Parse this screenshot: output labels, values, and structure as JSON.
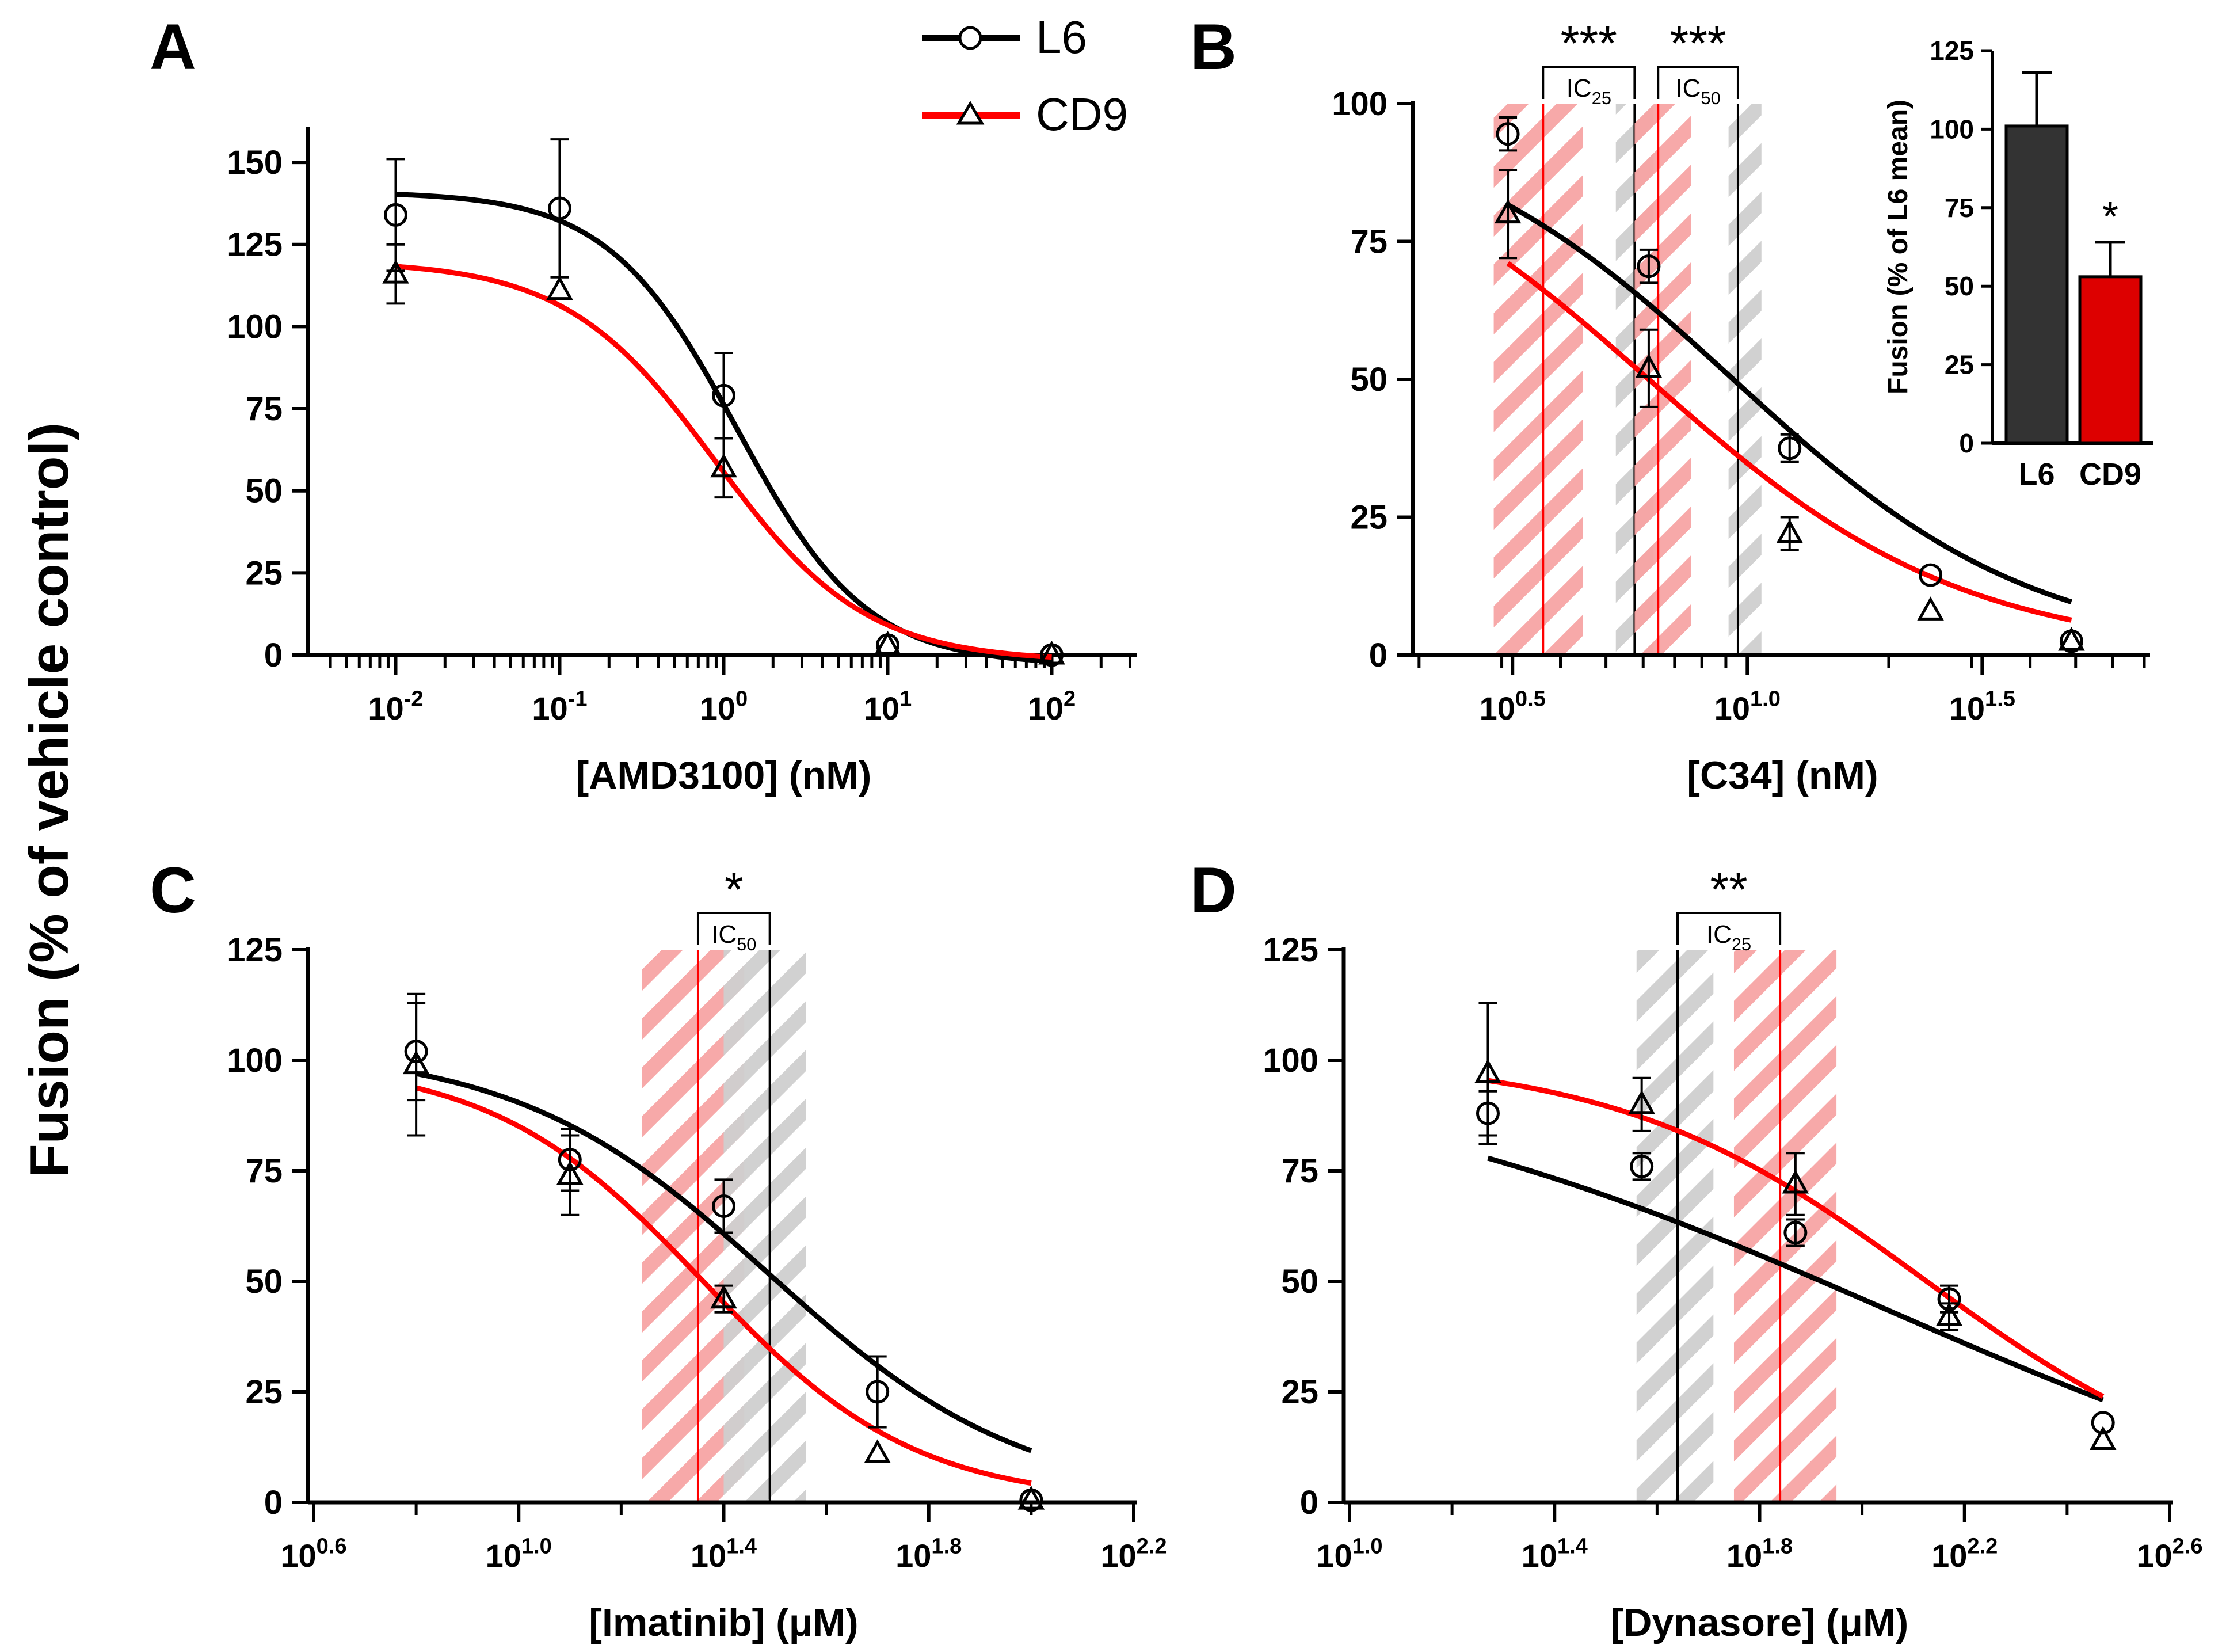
{
  "figure": {
    "shared_ylabel": "Fusion (% of vehicle control)",
    "legend": [
      {
        "name": "L6",
        "color": "#000000",
        "marker": "circle"
      },
      {
        "name": "CD9",
        "color": "#ff0000",
        "marker": "triangle"
      }
    ],
    "colors": {
      "l6": "#000000",
      "cd9": "#ff0000",
      "hatch_red": "#f7a4a4",
      "hatch_gray": "#cfcfcf",
      "bar_l6": "#333333",
      "bar_cd9": "#dd0000"
    }
  },
  "chart_data": [
    {
      "panel": "A",
      "type": "line",
      "xscale": "log10",
      "xlabel": "[AMD3100] (nM)",
      "ylabel": "Fusion (% of vehicle control)",
      "xlim_log": [
        -2.5,
        2.5
      ],
      "ylim": [
        0,
        160
      ],
      "yticks": [
        0,
        25,
        50,
        75,
        100,
        125,
        150
      ],
      "xticks": [
        {
          "log": -2,
          "base": "10",
          "exp": "-2"
        },
        {
          "log": -1,
          "base": "10",
          "exp": "-1"
        },
        {
          "log": 0,
          "base": "10",
          "exp": "0"
        },
        {
          "log": 1,
          "base": "10",
          "exp": "1"
        },
        {
          "log": 2,
          "base": "10",
          "exp": "2"
        }
      ],
      "minor_log_ticks": true,
      "series": [
        {
          "name": "L6",
          "x_log": [
            -2,
            -1,
            0,
            1,
            2
          ],
          "y": [
            134,
            136,
            79,
            3,
            0
          ],
          "err": [
            17,
            21,
            13,
            0,
            0
          ],
          "fit": {
            "top": 141,
            "bottom": -3,
            "logIC50": 0.08,
            "hill": 1.1
          }
        },
        {
          "name": "CD9",
          "x_log": [
            -2,
            -1,
            0,
            1,
            2
          ],
          "y": [
            116,
            111,
            57,
            3,
            0
          ],
          "err": [
            9,
            0,
            9,
            0,
            0
          ],
          "fit": {
            "top": 120,
            "bottom": -2,
            "logIC50": -0.05,
            "hill": 0.95
          }
        }
      ],
      "annotations": []
    },
    {
      "panel": "B",
      "type": "line",
      "xscale": "log10",
      "xlabel": "[C34] (nM)",
      "ylabel": "Fusion (% of vehicle control)",
      "xlim_log": [
        0.3,
        1.85
      ],
      "ylim": [
        0,
        100
      ],
      "yticks": [
        0,
        25,
        50,
        75,
        100
      ],
      "xticks": [
        {
          "log": 0.5,
          "base": "10",
          "exp": "0.5"
        },
        {
          "log": 1.0,
          "base": "10",
          "exp": "1.0"
        },
        {
          "log": 1.5,
          "base": "10",
          "exp": "1.5"
        }
      ],
      "minor_log_ticks": true,
      "series": [
        {
          "name": "L6",
          "x_log": [
            0.49,
            0.79,
            1.09,
            1.39,
            1.69
          ],
          "y": [
            94.5,
            70.5,
            37.5,
            14.5,
            2.5
          ],
          "err": [
            3,
            3,
            2.5,
            0,
            0
          ],
          "fit": {
            "top": 100,
            "bottom": 0,
            "logIC50": 0.97,
            "hill": 1.35
          }
        },
        {
          "name": "CD9",
          "x_log": [
            0.49,
            0.79,
            1.09,
            1.39,
            1.69
          ],
          "y": [
            80,
            52,
            22,
            8,
            2.5
          ],
          "err": [
            8,
            7,
            3,
            0,
            0
          ],
          "fit": {
            "top": 100,
            "bottom": 0,
            "logIC50": 0.79,
            "hill": 1.3
          }
        }
      ],
      "bands": [
        {
          "center_log": 0.565,
          "lo_log": 0.46,
          "hi_log": 0.65,
          "color": "red"
        },
        {
          "center_log": 0.76,
          "lo_log": 0.72,
          "hi_log": 0.8,
          "color": "gray"
        },
        {
          "center_log": 0.81,
          "lo_log": 0.76,
          "hi_log": 0.88,
          "color": "red"
        },
        {
          "center_log": 0.98,
          "lo_log": 0.96,
          "hi_log": 1.03,
          "color": "gray"
        }
      ],
      "annotations": [
        {
          "label_base": "IC",
          "label_sub": "25",
          "from_log": 0.565,
          "to_log": 0.76,
          "stars": "***"
        },
        {
          "label_base": "IC",
          "label_sub": "50",
          "from_log": 0.81,
          "to_log": 0.98,
          "stars": "***"
        }
      ],
      "inset": {
        "type": "bar",
        "categories": [
          "L6",
          "CD9"
        ],
        "values": [
          101,
          53
        ],
        "err": [
          17,
          11
        ],
        "ylabel": "Fusion (% of L6 mean)",
        "ylim": [
          0,
          125
        ],
        "yticks": [
          0,
          25,
          50,
          75,
          100,
          125
        ],
        "significance": [
          {
            "category": "CD9",
            "stars": "*"
          }
        ]
      }
    },
    {
      "panel": "C",
      "type": "line",
      "xscale": "log10",
      "xlabel": "[Imatinib] (μM)",
      "ylabel": "Fusion (% of vehicle control)",
      "xlim_log": [
        0.6,
        2.2
      ],
      "ylim": [
        0,
        125
      ],
      "yticks": [
        0,
        25,
        50,
        75,
        100,
        125
      ],
      "xticks": [
        {
          "log": 0.6,
          "base": "10",
          "exp": "0.6"
        },
        {
          "log": 1.0,
          "base": "10",
          "exp": "1.0"
        },
        {
          "log": 1.4,
          "base": "10",
          "exp": "1.4"
        },
        {
          "log": 1.8,
          "base": "10",
          "exp": "1.8"
        },
        {
          "log": 2.2,
          "base": "10",
          "exp": "2.2"
        }
      ],
      "minor_log_ticks": false,
      "series": [
        {
          "name": "L6",
          "x_log": [
            0.8,
            1.1,
            1.4,
            1.7,
            2.0
          ],
          "y": [
            102,
            77.5,
            67,
            25,
            0.5
          ],
          "err": [
            11,
            7,
            6,
            8,
            0
          ],
          "fit": {
            "top": 103,
            "bottom": 0,
            "logIC50": 1.49,
            "hill": 1.75
          }
        },
        {
          "name": "CD9",
          "x_log": [
            0.8,
            1.1,
            1.4,
            1.7,
            2.0
          ],
          "y": [
            99,
            74,
            46,
            11,
            0.5
          ],
          "err": [
            16,
            9,
            3,
            0,
            0
          ],
          "fit": {
            "top": 100,
            "bottom": 0,
            "logIC50": 1.36,
            "hill": 2.1
          }
        }
      ],
      "bands": [
        {
          "center_log": 1.35,
          "lo_log": 1.24,
          "hi_log": 1.44,
          "color": "red"
        },
        {
          "center_log": 1.49,
          "lo_log": 1.4,
          "hi_log": 1.56,
          "color": "gray"
        }
      ],
      "annotations": [
        {
          "label_base": "IC",
          "label_sub": "50",
          "from_log": 1.35,
          "to_log": 1.49,
          "stars": "*"
        }
      ]
    },
    {
      "panel": "D",
      "type": "line",
      "xscale": "log10",
      "xlabel": "[Dynasore] (μM)",
      "ylabel": "Fusion (% of vehicle control)",
      "xlim_log": [
        1.0,
        2.6
      ],
      "ylim": [
        0,
        125
      ],
      "yticks": [
        0,
        25,
        50,
        75,
        100,
        125
      ],
      "xticks": [
        {
          "log": 1.0,
          "base": "10",
          "exp": "1.0"
        },
        {
          "log": 1.4,
          "base": "10",
          "exp": "1.4"
        },
        {
          "log": 1.8,
          "base": "10",
          "exp": "1.8"
        },
        {
          "log": 2.2,
          "base": "10",
          "exp": "2.2"
        },
        {
          "log": 2.6,
          "base": "10",
          "exp": "2.6"
        }
      ],
      "minor_log_ticks": false,
      "series": [
        {
          "name": "L6",
          "x_log": [
            1.27,
            1.57,
            1.87,
            2.17,
            2.47
          ],
          "y": [
            88,
            76,
            61,
            46,
            18
          ],
          "err": [
            5,
            3,
            3,
            3,
            0
          ],
          "fit": {
            "top": 102,
            "bottom": -15,
            "logIC50": 2.05,
            "hill": 0.75
          }
        },
        {
          "name": "CD9",
          "x_log": [
            1.27,
            1.57,
            1.87,
            2.17,
            2.47
          ],
          "y": [
            97,
            90,
            72,
            42,
            14
          ],
          "err": [
            16,
            6,
            7,
            3,
            0
          ],
          "fit": {
            "top": 101,
            "bottom": 0,
            "logIC50": 2.12,
            "hill": 1.45
          }
        }
      ],
      "bands": [
        {
          "center_log": 1.64,
          "lo_log": 1.56,
          "hi_log": 1.71,
          "color": "gray"
        },
        {
          "center_log": 1.84,
          "lo_log": 1.75,
          "hi_log": 1.95,
          "color": "red"
        }
      ],
      "annotations": [
        {
          "label_base": "IC",
          "label_sub": "25",
          "from_log": 1.64,
          "to_log": 1.84,
          "stars": "**"
        }
      ]
    }
  ]
}
